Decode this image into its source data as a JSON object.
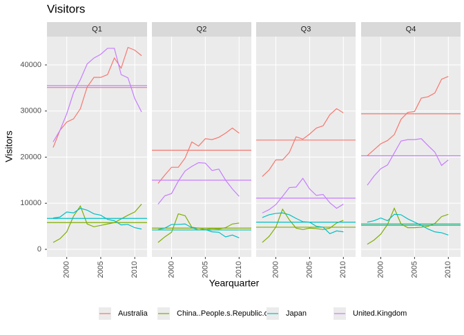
{
  "chart_data": {
    "type": "line",
    "title": "Visitors",
    "x_label": "Yearquarter",
    "y_label": "Visitors",
    "facets": [
      "Q1",
      "Q2",
      "Q3",
      "Q4"
    ],
    "x": [
      1998,
      1999,
      2000,
      2001,
      2002,
      2003,
      2004,
      2005,
      2006,
      2007,
      2008,
      2009,
      2010,
      2011
    ],
    "xlim": [
      1997.09,
      2011.81
    ],
    "xticks": [
      2000,
      2005,
      2010
    ],
    "ylim": [
      -1650,
      46140
    ],
    "yticks": [
      0,
      10000,
      20000,
      30000,
      40000
    ],
    "grid": true,
    "series": [
      {
        "name": "Australia",
        "color": "#f8766d",
        "values": [
          [
            22100,
            25800,
            27600,
            28300,
            30500,
            35200,
            37300,
            37300,
            37900,
            41500,
            39300,
            43800,
            43200,
            42000
          ],
          [
            14300,
            16100,
            17800,
            17800,
            19800,
            23300,
            22400,
            24000,
            23800,
            24300,
            25200,
            26300,
            25200,
            null
          ],
          [
            15800,
            17200,
            19400,
            19400,
            21000,
            24400,
            23900,
            25000,
            26300,
            26800,
            29200,
            30500,
            29600,
            null
          ],
          [
            20300,
            21600,
            22900,
            23600,
            24900,
            28200,
            29700,
            29900,
            32800,
            33100,
            33900,
            36900,
            37500,
            null
          ]
        ],
        "hline": [
          35100,
          21500,
          23700,
          29400
        ]
      },
      {
        "name": "China..People.s.Republic.of",
        "color": "#7cae00",
        "values": [
          [
            1500,
            2300,
            3800,
            7200,
            9400,
            5500,
            4900,
            5200,
            5500,
            5800,
            6600,
            7400,
            8100,
            9800
          ],
          [
            1500,
            2700,
            3700,
            7700,
            7300,
            4800,
            4600,
            4300,
            4500,
            4400,
            4700,
            5500,
            5700,
            null
          ],
          [
            1500,
            2800,
            4800,
            8700,
            6400,
            4600,
            4300,
            4600,
            4500,
            4300,
            4600,
            5700,
            6300,
            null
          ],
          [
            1100,
            2000,
            3300,
            5400,
            8900,
            5500,
            4700,
            4700,
            4800,
            5000,
            5600,
            7100,
            7600,
            null
          ]
        ],
        "hline": [
          5800,
          4600,
          4800,
          5200
        ]
      },
      {
        "name": "Japan",
        "color": "#00bfc4",
        "values": [
          [
            6800,
            7000,
            8100,
            7900,
            8900,
            8500,
            7700,
            7400,
            6500,
            6200,
            5300,
            5400,
            4700,
            4400
          ],
          [
            4300,
            4600,
            5400,
            5400,
            5500,
            4700,
            4200,
            4300,
            3800,
            3700,
            2700,
            3100,
            2500,
            null
          ],
          [
            6900,
            7500,
            7800,
            7900,
            7500,
            6700,
            6000,
            5900,
            5000,
            4800,
            3400,
            4000,
            3800,
            null
          ],
          [
            5900,
            6200,
            6800,
            6200,
            7600,
            7500,
            6600,
            5900,
            5200,
            4400,
            3800,
            3600,
            3100,
            null
          ]
        ],
        "hline": [
          6700,
          4200,
          5900,
          5500
        ]
      },
      {
        "name": "United.Kingdom",
        "color": "#c77cff",
        "values": [
          [
            23300,
            25800,
            29400,
            34000,
            36800,
            40200,
            41500,
            42300,
            43600,
            43600,
            37900,
            37200,
            32700,
            29800
          ],
          [
            9800,
            11600,
            12100,
            14800,
            17000,
            18000,
            18800,
            18700,
            17100,
            17400,
            15000,
            13100,
            11500,
            null
          ],
          [
            7900,
            8600,
            9700,
            11500,
            13400,
            13500,
            15400,
            13100,
            11700,
            11900,
            10100,
            8900,
            9800,
            null
          ],
          [
            13900,
            15900,
            17500,
            18300,
            20900,
            23500,
            23800,
            23800,
            24000,
            22500,
            21100,
            18200,
            19400,
            null
          ]
        ],
        "hline": [
          35500,
          15000,
          11100,
          20300
        ]
      }
    ]
  }
}
